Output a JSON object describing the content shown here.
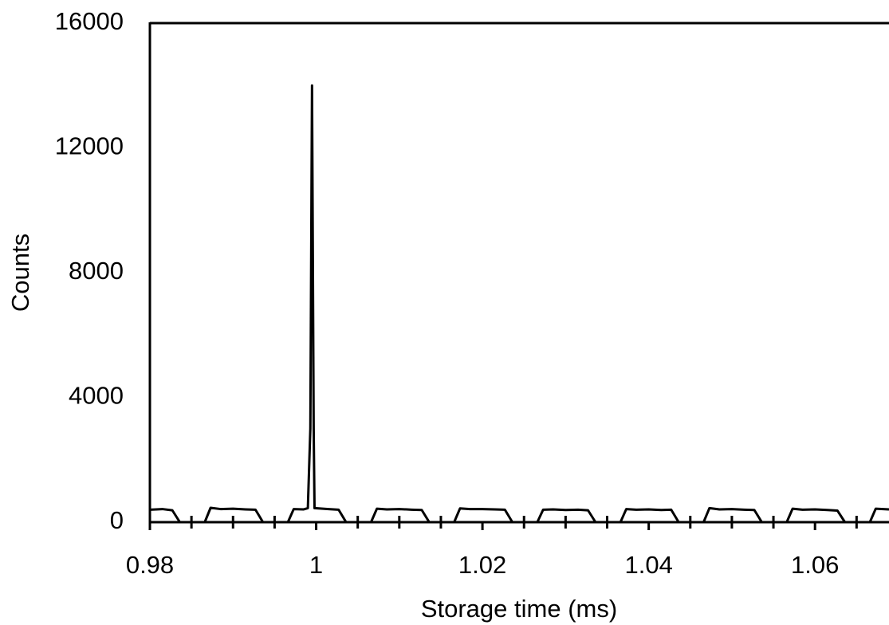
{
  "chart_data": {
    "type": "line",
    "x_label": "Storage time (ms)",
    "y_label": "Counts",
    "color": "#000000",
    "x": [
      0.98,
      0.9815,
      0.9827,
      0.9836,
      0.9866,
      0.9873,
      0.9885,
      0.99,
      0.9915,
      0.9927,
      0.9936,
      0.9966,
      0.9973,
      0.9985,
      0.999,
      0.9993,
      0.9995,
      0.9997,
      0.9998,
      1.0015,
      1.0027,
      1.0036,
      1.0066,
      1.0073,
      1.0085,
      1.01,
      1.0115,
      1.0127,
      1.0136,
      1.0166,
      1.0173,
      1.0185,
      1.02,
      1.0215,
      1.0227,
      1.0236,
      1.0266,
      1.0273,
      1.0285,
      1.03,
      1.0315,
      1.0327,
      1.0336,
      1.0366,
      1.0373,
      1.0385,
      1.04,
      1.0415,
      1.0427,
      1.0436,
      1.0466,
      1.0473,
      1.0485,
      1.05,
      1.0515,
      1.0527,
      1.0536,
      1.0566,
      1.0573,
      1.0585,
      1.06,
      1.0615,
      1.0627,
      1.0636,
      1.0666,
      1.0673,
      1.0689
    ],
    "values": [
      400,
      420,
      380,
      0,
      0,
      460,
      420,
      430,
      410,
      400,
      0,
      0,
      420,
      410,
      450,
      3000,
      14000,
      3000,
      450,
      420,
      400,
      0,
      0,
      430,
      410,
      420,
      400,
      390,
      0,
      0,
      440,
      420,
      420,
      410,
      400,
      0,
      0,
      400,
      410,
      390,
      400,
      380,
      0,
      0,
      420,
      400,
      410,
      390,
      400,
      0,
      0,
      450,
      410,
      420,
      400,
      390,
      0,
      0,
      430,
      400,
      410,
      390,
      370,
      0,
      0,
      430,
      410
    ],
    "xlim": [
      0.98,
      1.0689
    ],
    "ylim": [
      0,
      16000
    ],
    "xticks": [
      0.98,
      1,
      1.02,
      1.04,
      1.06
    ],
    "xminor_ticks": [
      0.985,
      0.99,
      0.995,
      1.005,
      1.01,
      1.015,
      1.025,
      1.03,
      1.035,
      1.045,
      1.05,
      1.055,
      1.065
    ],
    "yticks": [
      0,
      4000,
      8000,
      12000,
      16000
    ],
    "grid": false
  }
}
